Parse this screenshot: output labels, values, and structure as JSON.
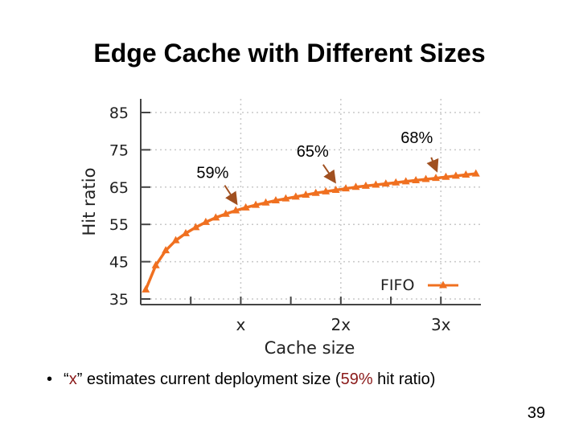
{
  "slide": {
    "title": "Edge Cache with Different Sizes",
    "bullet": {
      "marker": "•",
      "part1": "“",
      "x_var": "x",
      "part2": "” estimates current deployment size (",
      "pct": "59%",
      "part3": " hit ratio)"
    },
    "page_number": "39"
  },
  "colors": {
    "series": "#f07020",
    "grid": "#c8c8c8",
    "axis": "#444444",
    "annot_arrow": "#a05020"
  },
  "chart_data": {
    "type": "line",
    "title": "",
    "xlabel": "Cache size",
    "ylabel": "Hit ratio",
    "xlim": [
      0,
      3.4
    ],
    "ylim": [
      35,
      87
    ],
    "yticks": [
      35,
      45,
      55,
      65,
      75,
      85
    ],
    "ytick_labels": [
      "35",
      "45",
      "55",
      "65",
      "75",
      "85"
    ],
    "xticks": [
      1,
      2,
      3
    ],
    "xtick_labels": [
      "x",
      "2x",
      "3x"
    ],
    "grid": true,
    "legend_position": "bottom-right",
    "series": [
      {
        "name": "FIFO",
        "x": [
          0.05,
          0.15,
          0.25,
          0.35,
          0.45,
          0.55,
          0.65,
          0.75,
          0.85,
          0.95,
          1.05,
          1.15,
          1.25,
          1.35,
          1.45,
          1.55,
          1.65,
          1.75,
          1.85,
          1.95,
          2.05,
          2.15,
          2.25,
          2.35,
          2.45,
          2.55,
          2.65,
          2.75,
          2.85,
          2.95,
          3.05,
          3.15,
          3.25,
          3.35
        ],
        "y": [
          37.5,
          44.0,
          48.0,
          50.7,
          52.6,
          54.2,
          55.6,
          56.8,
          57.8,
          58.7,
          59.5,
          60.2,
          60.8,
          61.4,
          61.9,
          62.4,
          62.9,
          63.4,
          63.8,
          64.2,
          64.6,
          65.0,
          65.3,
          65.6,
          65.9,
          66.2,
          66.5,
          66.8,
          67.1,
          67.4,
          67.7,
          68.0,
          68.3,
          68.6
        ]
      }
    ],
    "annotations": [
      {
        "label": "59%",
        "x": 1.0,
        "y": 59.0
      },
      {
        "label": "65%",
        "x": 2.0,
        "y": 65.0
      },
      {
        "label": "68%",
        "x": 3.0,
        "y": 68.0
      }
    ]
  }
}
